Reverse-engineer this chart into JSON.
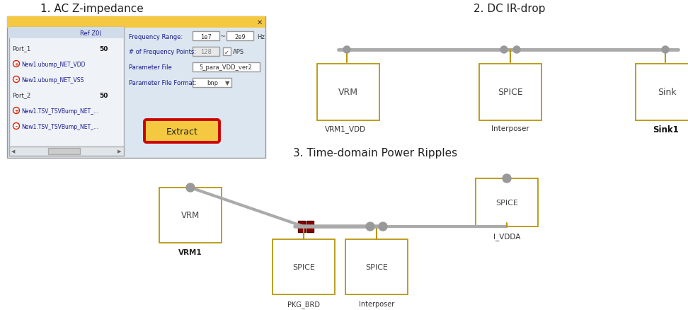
{
  "title1": "1. AC Z-impedance",
  "title2": "2. DC IR-drop",
  "title3": "3. Time-domain Power Ripples",
  "bg_color": "#ffffff",
  "dialog_bg": "#dce6f1",
  "dialog_header": "#f5c842",
  "box_color": "#b8960c",
  "box_fill": "#ffffff",
  "line_color": "#aaaaaa",
  "node_color": "#999999",
  "red_dark": "#8b0000",
  "extract_fill": "#f5c842",
  "extract_border": "#cc0000",
  "text_blue": "#1a1a8c",
  "text_dark": "#333333"
}
